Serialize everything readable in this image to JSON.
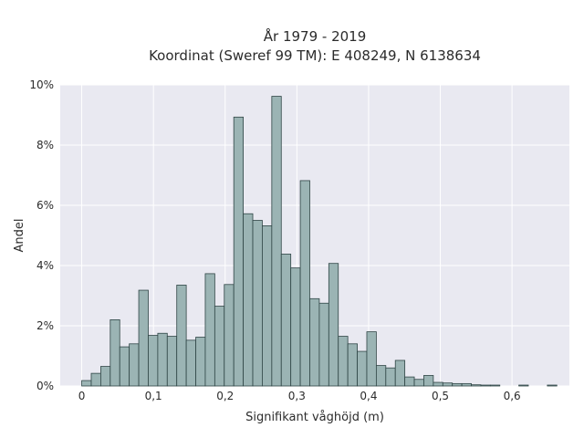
{
  "chart_data": {
    "type": "bar",
    "title": "År 1979 - 2019",
    "subtitle": "Koordinat (Sweref 99 TM): E 408249, N 6138634",
    "xlabel": "Signifikant våghöjd (m)",
    "ylabel": "Andel",
    "xlim": [
      -0.03,
      0.68
    ],
    "ylim": [
      0,
      10
    ],
    "x_ticks": [
      0,
      0.1,
      0.2,
      0.3,
      0.4,
      0.5,
      0.6
    ],
    "x_tick_labels": [
      "0",
      "0,1",
      "0,2",
      "0,3",
      "0,4",
      "0,5",
      "0,6"
    ],
    "y_ticks": [
      0,
      2,
      4,
      6,
      8,
      10
    ],
    "y_tick_labels": [
      "0%",
      "2%",
      "4%",
      "6%",
      "8%",
      "10%"
    ],
    "grid": true,
    "bin_width": 0.01325,
    "bins_start": 0,
    "values": [
      0.18,
      0.42,
      0.65,
      2.2,
      1.3,
      1.4,
      3.18,
      1.68,
      1.75,
      1.65,
      3.35,
      1.52,
      1.62,
      3.73,
      2.65,
      3.37,
      8.93,
      5.72,
      5.5,
      5.32,
      9.62,
      4.38,
      3.92,
      6.82,
      2.9,
      2.75,
      4.07,
      1.65,
      1.4,
      1.15,
      1.8,
      0.68,
      0.6,
      0.85,
      0.3,
      0.22,
      0.35,
      0.12,
      0.1,
      0.08,
      0.08,
      0.04,
      0.03,
      0.03,
      0,
      0,
      0.03,
      0,
      0,
      0.03
    ],
    "colors": {
      "bar_fill": "#9bb4b4",
      "bar_edge": "#2f4545",
      "plot_bg": "#e9e9f1",
      "grid": "#ffffff"
    }
  }
}
